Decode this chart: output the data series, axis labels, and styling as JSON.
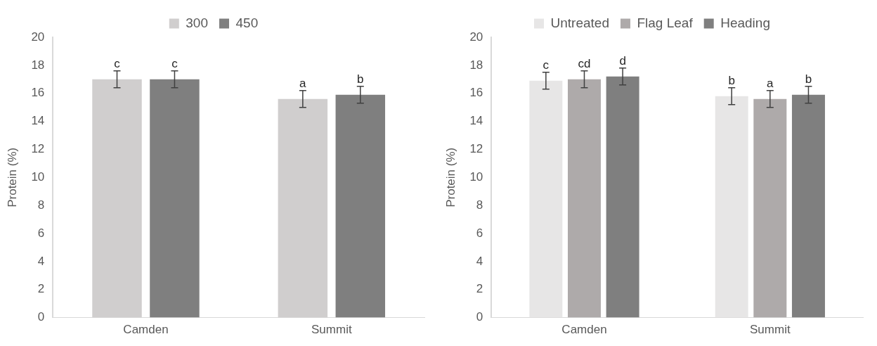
{
  "chart_data": [
    {
      "type": "bar",
      "ylabel": "Protein (%)",
      "categories": [
        "Camden",
        "Summit"
      ],
      "ylim": [
        0,
        20
      ],
      "yticks": [
        0,
        2,
        4,
        6,
        8,
        10,
        12,
        14,
        16,
        18,
        20
      ],
      "grid": false,
      "legend": "top",
      "series": [
        {
          "name": "300",
          "color": "#d0cece",
          "values": [
            17.0,
            15.6
          ],
          "errors": [
            0.6,
            0.6
          ],
          "value_labels": [
            "c",
            "a"
          ]
        },
        {
          "name": "450",
          "color": "#7f7f7f",
          "values": [
            17.0,
            15.9
          ],
          "errors": [
            0.6,
            0.6
          ],
          "value_labels": [
            "c",
            "b"
          ]
        }
      ]
    },
    {
      "type": "bar",
      "ylabel": "Protein (%)",
      "categories": [
        "Camden",
        "Summit"
      ],
      "ylim": [
        0,
        20
      ],
      "yticks": [
        0,
        2,
        4,
        6,
        8,
        10,
        12,
        14,
        16,
        18,
        20
      ],
      "grid": false,
      "legend": "top",
      "series": [
        {
          "name": "Untreated",
          "color": "#e7e6e6",
          "values": [
            16.9,
            15.8
          ],
          "errors": [
            0.6,
            0.6
          ],
          "value_labels": [
            "c",
            "b"
          ]
        },
        {
          "name": "Flag Leaf",
          "color": "#aeaaaa",
          "values": [
            17.0,
            15.6
          ],
          "errors": [
            0.6,
            0.6
          ],
          "value_labels": [
            "cd",
            "a"
          ]
        },
        {
          "name": "Heading",
          "color": "#7f7f7f",
          "values": [
            17.2,
            15.9
          ],
          "errors": [
            0.6,
            0.6
          ],
          "value_labels": [
            "d",
            "b"
          ]
        }
      ]
    }
  ]
}
